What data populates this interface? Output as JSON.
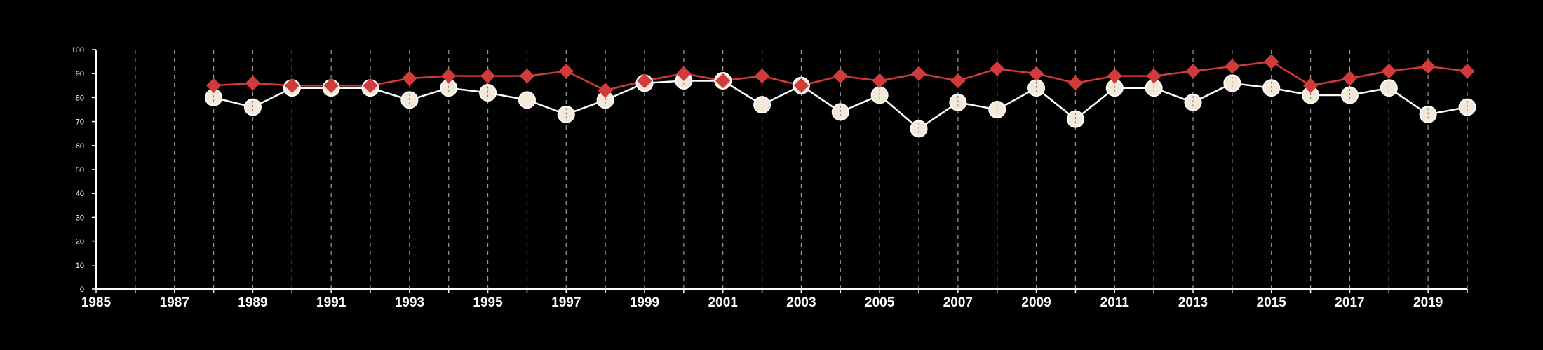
{
  "chart_data": {
    "type": "line",
    "title": "",
    "xlabel": "",
    "ylabel": "",
    "xlim": [
      1985,
      2020
    ],
    "ylim": [
      0,
      100
    ],
    "y_ticks": [
      "0",
      "10",
      "20",
      "30",
      "40",
      "50",
      "60",
      "70",
      "80",
      "90",
      "100"
    ],
    "x_ticks": [
      "1985",
      "1987",
      "1989",
      "1991",
      "1993",
      "1995",
      "1997",
      "1999",
      "2001",
      "2003",
      "2005",
      "2007",
      "2009",
      "2011",
      "2013",
      "2015",
      "2017",
      "2019"
    ],
    "grid": "vertical dashed lines at every year",
    "legend": "none",
    "x": [
      1988,
      1989,
      1990,
      1991,
      1992,
      1993,
      1994,
      1995,
      1996,
      1997,
      1998,
      1999,
      2000,
      2001,
      2002,
      2003,
      2004,
      2005,
      2006,
      2007,
      2008,
      2009,
      2010,
      2011,
      2012,
      2013,
      2014,
      2015,
      2016,
      2017,
      2018,
      2019,
      2020
    ],
    "series": [
      {
        "color": "#d13b3b",
        "marker": "diamond",
        "values": [
          85,
          86,
          85,
          85,
          85,
          88,
          89,
          89,
          89,
          91,
          83,
          87,
          90,
          87,
          89,
          85,
          89,
          87,
          90,
          87,
          92,
          90,
          86,
          89,
          89,
          91,
          93,
          95,
          85,
          88,
          91,
          93,
          91
        ]
      },
      {
        "color": "#ffffff",
        "marker": "circle",
        "marker_fill": "#f4e8d8",
        "values": [
          80,
          76,
          84,
          84,
          84,
          79,
          84,
          82,
          79,
          73,
          79,
          86,
          87,
          87,
          77,
          85,
          74,
          81,
          67,
          78,
          75,
          84,
          71,
          84,
          84,
          78,
          86,
          84,
          81,
          81,
          84,
          73,
          76
        ]
      }
    ]
  }
}
